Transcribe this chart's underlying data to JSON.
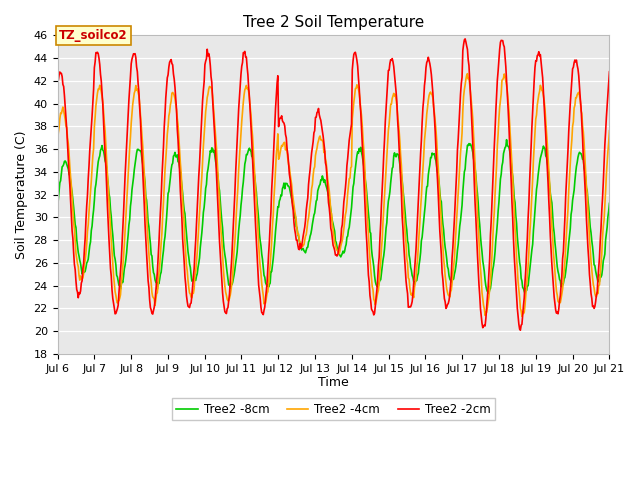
{
  "title": "Tree 2 Soil Temperature",
  "ylabel": "Soil Temperature (C)",
  "xlabel": "Time",
  "legend_label": "TZ_soilco2",
  "series_labels": [
    "Tree2 -2cm",
    "Tree2 -4cm",
    "Tree2 -8cm"
  ],
  "series_colors": [
    "#ff0000",
    "#ffa500",
    "#00cc00"
  ],
  "ylim": [
    18,
    46
  ],
  "xlim_days": [
    6,
    21
  ],
  "xtick_labels": [
    "Jul 6",
    "Jul 7",
    "Jul 8",
    "Jul 9",
    "Jul 10",
    "Jul 11",
    "Jul 12",
    "Jul 13",
    "Jul 14",
    "Jul 15",
    "Jul 16",
    "Jul 17",
    "Jul 18",
    "Jul 19",
    "Jul 20",
    "Jul 21"
  ],
  "bg_color": "#e8e8e8",
  "line_width": 1.2,
  "title_fontsize": 11,
  "axis_label_fontsize": 9,
  "tick_fontsize": 8,
  "legend_box_color": "#ffffcc",
  "legend_box_edge": "#cc8800",
  "legend_label_color": "#cc0000",
  "figwidth": 6.4,
  "figheight": 4.8,
  "dpi": 100
}
